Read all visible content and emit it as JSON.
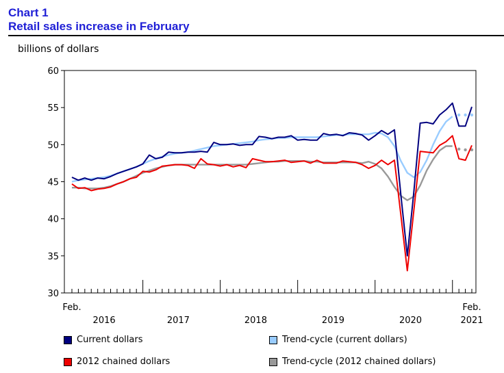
{
  "header": {
    "chart_number": "Chart 1",
    "title": "Retail sales increase in February"
  },
  "colors": {
    "current": "#00007f",
    "trend_current": "#99ccff",
    "chained": "#ee0000",
    "trend_chained": "#999999"
  },
  "chart_data": {
    "type": "line",
    "title": "Retail sales increase in February",
    "ylabel": "billions of dollars",
    "ylim": [
      30,
      60
    ],
    "yticks": [
      30,
      35,
      40,
      45,
      50,
      55,
      60
    ],
    "x_start": "2016-02",
    "x_end": "2021-02",
    "x_tick_labels": {
      "first_month": "Feb.",
      "last_month": "Feb.",
      "years": [
        "2016",
        "2017",
        "2018",
        "2019",
        "2020",
        "2021"
      ]
    },
    "grid": false,
    "legend_position": "bottom",
    "series": [
      {
        "name": "Current dollars",
        "color": "#00007f",
        "values": [
          45.6,
          45.2,
          45.5,
          45.2,
          45.5,
          45.4,
          45.7,
          46.1,
          46.4,
          46.7,
          47.0,
          47.4,
          48.6,
          48.1,
          48.3,
          49.0,
          48.9,
          48.9,
          49.0,
          49.0,
          49.1,
          49.0,
          50.3,
          50.0,
          50.0,
          50.1,
          49.9,
          50.0,
          50.0,
          51.1,
          51.0,
          50.8,
          51.0,
          51.0,
          51.2,
          50.6,
          50.7,
          50.6,
          50.6,
          51.5,
          51.3,
          51.4,
          51.2,
          51.6,
          51.5,
          51.3,
          50.6,
          51.2,
          51.9,
          51.4,
          52.0,
          43.2,
          35.0,
          43.5,
          52.9,
          53.0,
          52.8,
          54.0,
          54.7,
          55.6,
          52.5,
          52.5,
          55.1
        ],
        "dashed_from_index": null
      },
      {
        "name": "Trend-cycle (current dollars)",
        "color": "#99ccff",
        "values": [
          45.0,
          45.2,
          45.3,
          45.4,
          45.5,
          45.6,
          45.8,
          46.1,
          46.4,
          46.7,
          47.0,
          47.4,
          47.8,
          48.1,
          48.4,
          48.6,
          48.8,
          48.9,
          49.0,
          49.2,
          49.4,
          49.6,
          49.8,
          49.9,
          50.0,
          50.1,
          50.2,
          50.3,
          50.4,
          50.6,
          50.7,
          50.8,
          50.9,
          50.9,
          51.0,
          51.0,
          51.0,
          51.0,
          51.0,
          51.1,
          51.2,
          51.3,
          51.3,
          51.4,
          51.4,
          51.4,
          51.4,
          51.6,
          51.5,
          51.0,
          49.8,
          47.8,
          46.2,
          45.6,
          46.3,
          47.9,
          50.0,
          51.8,
          53.1,
          53.8,
          54.0,
          54.0,
          54.0
        ],
        "dashed_from_index": 59
      },
      {
        "name": "2012 chained dollars",
        "color": "#ee0000",
        "values": [
          44.7,
          44.1,
          44.2,
          43.8,
          44.0,
          44.1,
          44.3,
          44.7,
          45.0,
          45.4,
          45.6,
          46.4,
          46.3,
          46.6,
          47.1,
          47.2,
          47.3,
          47.3,
          47.2,
          46.8,
          48.1,
          47.4,
          47.3,
          47.1,
          47.3,
          47.0,
          47.2,
          46.9,
          48.1,
          47.9,
          47.7,
          47.7,
          47.8,
          47.9,
          47.6,
          47.7,
          47.8,
          47.5,
          47.9,
          47.5,
          47.5,
          47.5,
          47.8,
          47.7,
          47.6,
          47.3,
          46.8,
          47.2,
          47.9,
          47.3,
          47.9,
          40.5,
          33.0,
          41.0,
          49.1,
          49.0,
          48.9,
          49.9,
          50.4,
          51.2,
          48.1,
          47.9,
          49.9
        ],
        "dashed_from_index": null
      },
      {
        "name": "Trend-cycle (2012 chained dollars)",
        "color": "#999999",
        "values": [
          44.2,
          44.2,
          44.1,
          44.1,
          44.1,
          44.2,
          44.4,
          44.7,
          45.0,
          45.4,
          45.8,
          46.2,
          46.5,
          46.8,
          47.0,
          47.2,
          47.3,
          47.3,
          47.3,
          47.3,
          47.3,
          47.3,
          47.3,
          47.3,
          47.3,
          47.3,
          47.3,
          47.3,
          47.4,
          47.5,
          47.6,
          47.7,
          47.7,
          47.8,
          47.8,
          47.8,
          47.8,
          47.7,
          47.7,
          47.6,
          47.6,
          47.6,
          47.6,
          47.6,
          47.6,
          47.5,
          47.7,
          47.4,
          46.8,
          45.7,
          44.3,
          43.1,
          42.5,
          43.0,
          44.5,
          46.5,
          48.0,
          49.2,
          49.8,
          49.8,
          49.4,
          49.3,
          49.3
        ],
        "dashed_from_index": 59
      }
    ]
  }
}
